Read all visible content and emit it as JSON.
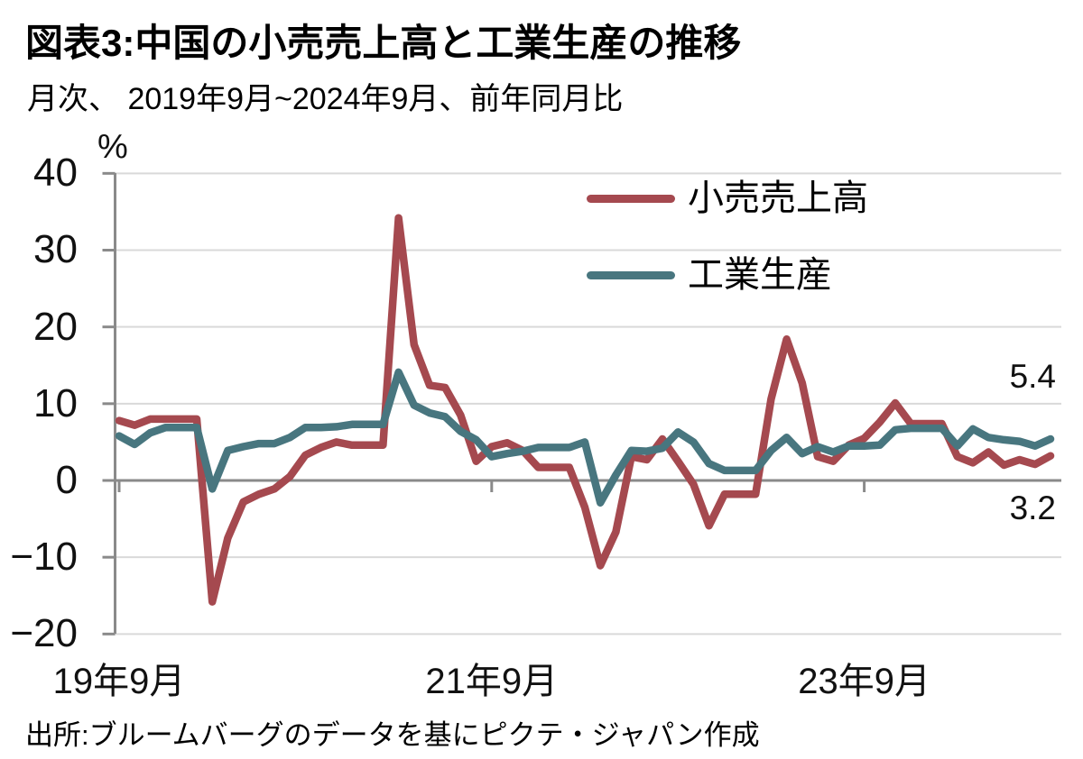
{
  "header": {
    "title": "図表3:中国の小売売上高と工業生産の推移",
    "subtitle": "月次、 2019年9月~2024年9月、前年同月比"
  },
  "footer": {
    "source": "出所:ブルームバーグのデータを基にピクテ・ジャパン作成"
  },
  "colors": {
    "retail": "#A5494F",
    "industrial": "#48767F",
    "grid": "#D9D9D9",
    "axis": "#8A8A8A",
    "zero_line": "#8A8A8A"
  },
  "chart_data": {
    "type": "line",
    "title": "図表3:中国の小売売上高と工業生産の推移",
    "subtitle": "月次、 2019年9月~2024年9月、前年同月比",
    "unit_label": "%",
    "ylim": [
      -20,
      40
    ],
    "yticks": [
      40,
      30,
      20,
      10,
      0,
      -10,
      -20
    ],
    "grid": "horizontal",
    "legend_position": "top-right-inside",
    "months": [
      "2019-09",
      "2019-10",
      "2019-11",
      "2019-12",
      "2020-01",
      "2020-02",
      "2020-03",
      "2020-04",
      "2020-05",
      "2020-06",
      "2020-07",
      "2020-08",
      "2020-09",
      "2020-10",
      "2020-11",
      "2020-12",
      "2021-01",
      "2021-02",
      "2021-03",
      "2021-04",
      "2021-05",
      "2021-06",
      "2021-07",
      "2021-08",
      "2021-09",
      "2021-10",
      "2021-11",
      "2021-12",
      "2022-01",
      "2022-02",
      "2022-03",
      "2022-04",
      "2022-05",
      "2022-06",
      "2022-07",
      "2022-08",
      "2022-09",
      "2022-10",
      "2022-11",
      "2022-12",
      "2023-01",
      "2023-02",
      "2023-03",
      "2023-04",
      "2023-05",
      "2023-06",
      "2023-07",
      "2023-08",
      "2023-09",
      "2023-10",
      "2023-11",
      "2023-12",
      "2024-01",
      "2024-02",
      "2024-03",
      "2024-04",
      "2024-05",
      "2024-06",
      "2024-07",
      "2024-08",
      "2024-09"
    ],
    "series": [
      {
        "name": "小売売上高",
        "color": "#A5494F",
        "values": [
          7.8,
          7.2,
          8.0,
          8.0,
          8.0,
          8.0,
          -15.8,
          -7.5,
          -2.8,
          -1.8,
          -1.1,
          0.5,
          3.3,
          4.3,
          5.0,
          4.6,
          4.6,
          4.6,
          34.2,
          17.7,
          12.4,
          12.1,
          8.5,
          2.5,
          4.4,
          4.9,
          3.9,
          1.7,
          1.7,
          1.7,
          -3.5,
          -11.1,
          -6.7,
          3.1,
          2.7,
          5.4,
          2.5,
          -0.5,
          -5.9,
          -1.8,
          -1.8,
          -1.8,
          10.6,
          18.4,
          12.7,
          3.1,
          2.5,
          4.6,
          5.5,
          7.6,
          10.1,
          7.4,
          7.4,
          7.4,
          3.1,
          2.3,
          3.7,
          2.0,
          2.7,
          2.1,
          3.2
        ]
      },
      {
        "name": "工業生産",
        "color": "#48767F",
        "values": [
          5.8,
          4.7,
          6.2,
          6.9,
          6.9,
          6.9,
          -1.1,
          3.9,
          4.4,
          4.8,
          4.8,
          5.6,
          6.9,
          6.9,
          7.0,
          7.3,
          7.3,
          7.3,
          14.1,
          9.8,
          8.8,
          8.3,
          6.4,
          5.3,
          3.1,
          3.5,
          3.8,
          4.3,
          4.3,
          4.3,
          5.0,
          -2.9,
          0.7,
          3.9,
          3.8,
          4.2,
          6.3,
          5.0,
          2.2,
          1.3,
          1.3,
          1.3,
          3.9,
          5.6,
          3.5,
          4.4,
          3.7,
          4.5,
          4.5,
          4.6,
          6.6,
          6.8,
          6.8,
          6.8,
          4.5,
          6.7,
          5.6,
          5.3,
          5.1,
          4.5,
          5.4
        ]
      }
    ],
    "xticks": [
      {
        "label": "19年9月",
        "month_index": 0
      },
      {
        "label": "21年9月",
        "month_index": 24
      },
      {
        "label": "23年9月",
        "month_index": 48
      }
    ],
    "end_labels": [
      {
        "series": "工業生産",
        "value": "5.4"
      },
      {
        "series": "小売売上高",
        "value": "3.2"
      }
    ]
  }
}
